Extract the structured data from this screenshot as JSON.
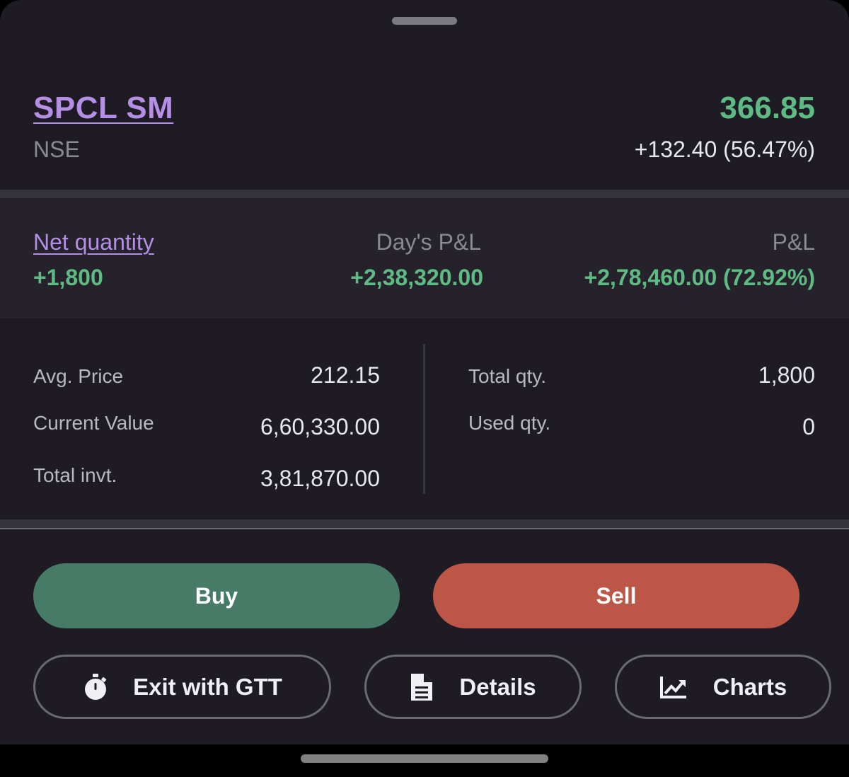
{
  "instrument": {
    "symbol": "SPCL SM",
    "exchange": "NSE",
    "ltp": "366.85",
    "change": "+132.40 (56.47%)"
  },
  "pnl": {
    "net_quantity_label": "Net quantity",
    "net_quantity_value": "+1,800",
    "days_pnl_label": "Day's P&L",
    "days_pnl_value": "+2,38,320.00",
    "pnl_label": "P&L",
    "pnl_value": "+2,78,460.00 (72.92%)"
  },
  "stats": {
    "avg_price_label": "Avg. Price",
    "avg_price_value": "212.15",
    "current_value_label": "Current Value",
    "current_value_value": "6,60,330.00",
    "total_invt_label": "Total invt.",
    "total_invt_value": "3,81,870.00",
    "total_qty_label": "Total qty.",
    "total_qty_value": "1,800",
    "used_qty_label": "Used qty.",
    "used_qty_value": "0"
  },
  "actions": {
    "buy_label": "Buy",
    "sell_label": "Sell",
    "exit_gtt_label": "Exit with GTT",
    "details_label": "Details",
    "charts_label": "Charts"
  },
  "icons": {
    "exit_gtt": "stopwatch-icon",
    "details": "document-icon",
    "charts": "line-chart-icon"
  },
  "colors": {
    "profit": "#5fbb84",
    "link": "#b58ee6",
    "buy": "#467c67",
    "sell": "#bc5646",
    "background": "#1e1b25"
  }
}
